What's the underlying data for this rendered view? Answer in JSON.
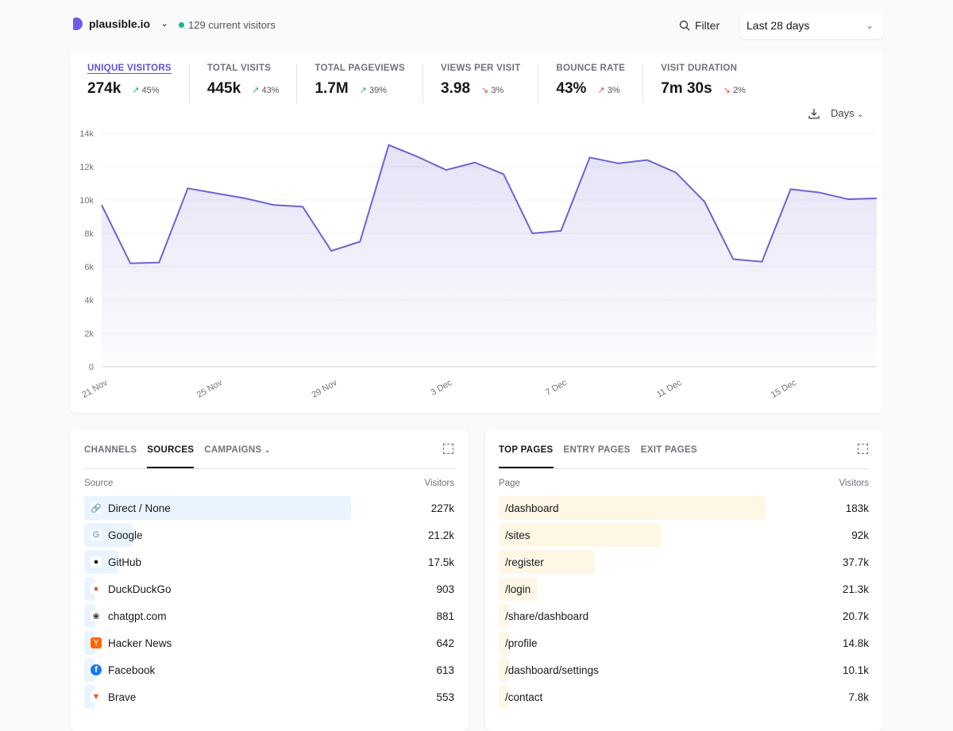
{
  "header": {
    "site": "plausible.io",
    "current_visitors": "129 current visitors",
    "filter": "Filter",
    "date_range": "Last 28 days"
  },
  "metrics": [
    {
      "label": "UNIQUE VISITORS",
      "value": "274k",
      "change": "45%",
      "direction": "up",
      "active": true
    },
    {
      "label": "TOTAL VISITS",
      "value": "445k",
      "change": "43%",
      "direction": "up"
    },
    {
      "label": "TOTAL PAGEVIEWS",
      "value": "1.7M",
      "change": "39%",
      "direction": "up"
    },
    {
      "label": "VIEWS PER VISIT",
      "value": "3.98",
      "change": "3%",
      "direction": "down"
    },
    {
      "label": "BOUNCE RATE",
      "value": "43%",
      "change": "3%",
      "direction": "up"
    },
    {
      "label": "VISIT DURATION",
      "value": "7m 30s",
      "change": "2%",
      "direction": "down"
    }
  ],
  "interval": "Days",
  "colors": {
    "accent": "#6c63d1",
    "positive": "#10b981",
    "negative": "#ef4444",
    "source_bar": "#eaf4ff",
    "page_bar": "#fef7e6"
  },
  "chart_data": {
    "type": "area",
    "xlabel": "",
    "ylabel": "",
    "ylim": [
      0,
      14000
    ],
    "grid": true,
    "yticks": [
      "0",
      "2k",
      "4k",
      "6k",
      "8k",
      "10k",
      "12k",
      "14k"
    ],
    "x": [
      "21 Nov",
      "22 Nov",
      "23 Nov",
      "24 Nov",
      "25 Nov",
      "26 Nov",
      "27 Nov",
      "28 Nov",
      "29 Nov",
      "30 Nov",
      "1 Dec",
      "2 Dec",
      "3 Dec",
      "4 Dec",
      "5 Dec",
      "6 Dec",
      "7 Dec",
      "8 Dec",
      "9 Dec",
      "10 Dec",
      "11 Dec",
      "12 Dec",
      "13 Dec",
      "14 Dec",
      "15 Dec",
      "16 Dec",
      "17 Dec",
      "18 Dec"
    ],
    "xtick_labels": [
      "21 Nov",
      "25 Nov",
      "29 Nov",
      "3 Dec",
      "7 Dec",
      "11 Dec",
      "15 Dec"
    ],
    "values": [
      9700,
      6200,
      6250,
      10700,
      10400,
      10100,
      9700,
      9600,
      6950,
      7500,
      13300,
      12600,
      11800,
      12250,
      11550,
      8000,
      8150,
      12550,
      12200,
      12400,
      11650,
      9900,
      6450,
      6300,
      10650,
      10450,
      10050,
      10100
    ]
  },
  "sources": {
    "tabs": [
      "CHANNELS",
      "SOURCES",
      "CAMPAIGNS"
    ],
    "active_tab": 1,
    "col_label": "Source",
    "col_value": "Visitors",
    "rows": [
      {
        "name": "Direct / None",
        "value": "227k",
        "icon": "link-icon",
        "bar": 0.72
      },
      {
        "name": "Google",
        "value": "21.2k",
        "icon": "google-icon",
        "bar": 0.13
      },
      {
        "name": "GitHub",
        "value": "17.5k",
        "icon": "github-icon",
        "bar": 0.09
      },
      {
        "name": "DuckDuckGo",
        "value": "903",
        "icon": "duckduckgo-icon",
        "bar": 0.03
      },
      {
        "name": "chatgpt.com",
        "value": "881",
        "icon": "chatgpt-icon",
        "bar": 0.02
      },
      {
        "name": "Hacker News",
        "value": "642",
        "icon": "hacker-news-icon",
        "bar": 0.015
      },
      {
        "name": "Facebook",
        "value": "613",
        "icon": "facebook-icon",
        "bar": 0.01
      },
      {
        "name": "Brave",
        "value": "553",
        "icon": "brave-icon",
        "bar": 0.01
      }
    ]
  },
  "pages": {
    "tabs": [
      "TOP PAGES",
      "ENTRY PAGES",
      "EXIT PAGES"
    ],
    "active_tab": 0,
    "col_label": "Page",
    "col_value": "Visitors",
    "rows": [
      {
        "name": "/dashboard",
        "value": "183k",
        "bar": 0.72
      },
      {
        "name": "/sites",
        "value": "92k",
        "bar": 0.44
      },
      {
        "name": "/register",
        "value": "37.7k",
        "bar": 0.26
      },
      {
        "name": "/login",
        "value": "21.3k",
        "bar": 0.105
      },
      {
        "name": "/share/dashboard",
        "value": "20.7k",
        "bar": 0.03
      },
      {
        "name": "/profile",
        "value": "14.8k",
        "bar": 0.025
      },
      {
        "name": "/dashboard/settings",
        "value": "10.1k",
        "bar": 0.02
      },
      {
        "name": "/contact",
        "value": "7.8k",
        "bar": 0.015
      }
    ]
  }
}
